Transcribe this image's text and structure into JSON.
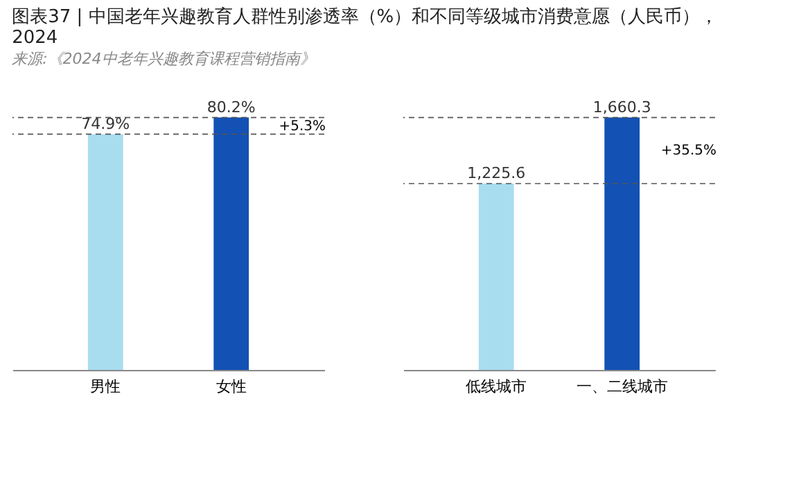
{
  "chart_data": [
    {
      "type": "bar",
      "title": "图表37 | 中国老年兴趣教育人群性别渗透率（%）和不同等级城市消费意愿（人民币），2024",
      "subtitle": "来源:《2024中老年兴趣教育课程营销指南》",
      "categories": [
        "男性",
        "女性"
      ],
      "values": [
        74.9,
        80.2
      ],
      "colors": [
        "#a8ddf0",
        "#1351b4"
      ],
      "value_labels": [
        "74.9%",
        "80.2%"
      ],
      "ref_lines": [
        {
          "axis": "y",
          "value": 74.9,
          "line_style": "dashed",
          "color": "#555555"
        },
        {
          "axis": "y",
          "value": 80.2,
          "line_style": "dashed",
          "color": "#555555"
        }
      ],
      "annotations": [
        "+5.3%"
      ]
    },
    {
      "type": "bar",
      "categories": [
        "低线城市",
        "一、二线城市"
      ],
      "values": [
        1225.6,
        1660.3
      ],
      "colors": [
        "#a8ddf0",
        "#1351b4"
      ],
      "value_labels": [
        "1,225.6",
        "1,660.3"
      ],
      "ref_lines": [
        {
          "axis": "y",
          "value": 1225.6,
          "line_style": "dashed",
          "color": "#555555"
        },
        {
          "axis": "y",
          "value": 1660.3,
          "line_style": "dashed",
          "color": "#555555"
        }
      ],
      "annotations": [
        "+35.5%"
      ]
    }
  ]
}
